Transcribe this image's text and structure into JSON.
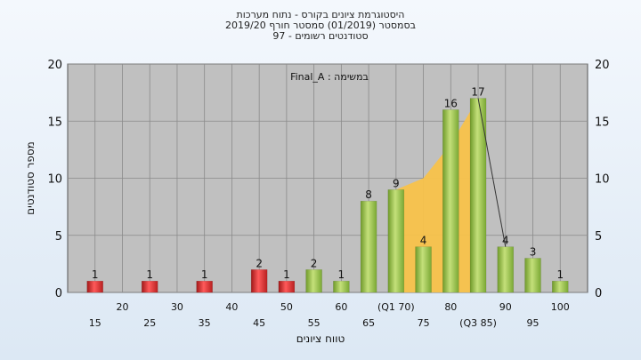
{
  "chart_data": {
    "type": "bar",
    "title": [
      "היסטוגרמת ציונים בקורס - נתוח מערכות",
      "בסמסטר  (01/2019)  סמסטר חורף 2019/20",
      "סטודנטים רשומים - 97"
    ],
    "xlabel": "טווח ציונים",
    "ylabel": "מספר סטודנטים",
    "ylim": [
      0,
      20
    ],
    "yticks": [
      0,
      5,
      10,
      15,
      20
    ],
    "xlim": [
      10,
      105
    ],
    "x_tick_labels_upper": [
      "20",
      "30",
      "40",
      "50",
      "60",
      "(Q1 70)",
      "80",
      "90",
      "100"
    ],
    "x_tick_labels_lower": [
      "15",
      "25",
      "35",
      "45",
      "55",
      "65",
      "75",
      "(Q3 85)",
      "95"
    ],
    "annotation": "במשימה : Final_A",
    "bars": [
      {
        "x": 15,
        "value": 1,
        "color": "red"
      },
      {
        "x": 25,
        "value": 1,
        "color": "red"
      },
      {
        "x": 35,
        "value": 1,
        "color": "red"
      },
      {
        "x": 45,
        "value": 2,
        "color": "red"
      },
      {
        "x": 50,
        "value": 1,
        "color": "red"
      },
      {
        "x": 55,
        "value": 2,
        "color": "green"
      },
      {
        "x": 60,
        "value": 1,
        "color": "green"
      },
      {
        "x": 65,
        "value": 8,
        "color": "green"
      },
      {
        "x": 70,
        "value": 9,
        "color": "green"
      },
      {
        "x": 75,
        "value": 4,
        "color": "green"
      },
      {
        "x": 80,
        "value": 16,
        "color": "green"
      },
      {
        "x": 85,
        "value": 17,
        "color": "green"
      },
      {
        "x": 90,
        "value": 4,
        "color": "green"
      },
      {
        "x": 95,
        "value": 3,
        "color": "green"
      },
      {
        "x": 100,
        "value": 1,
        "color": "green"
      }
    ],
    "iqr_area": [
      [
        70,
        9
      ],
      [
        75,
        10
      ],
      [
        80,
        13
      ],
      [
        85,
        17
      ]
    ],
    "median_line": [
      [
        85,
        17
      ],
      [
        90,
        4
      ]
    ],
    "colors": {
      "plot_bg": "#c0c0c0",
      "grid": "#8a8a8a",
      "red_bar": "#e03030",
      "green_bar": "#9cc050",
      "iqr_fill": "#f8c24a"
    },
    "grid": true
  }
}
